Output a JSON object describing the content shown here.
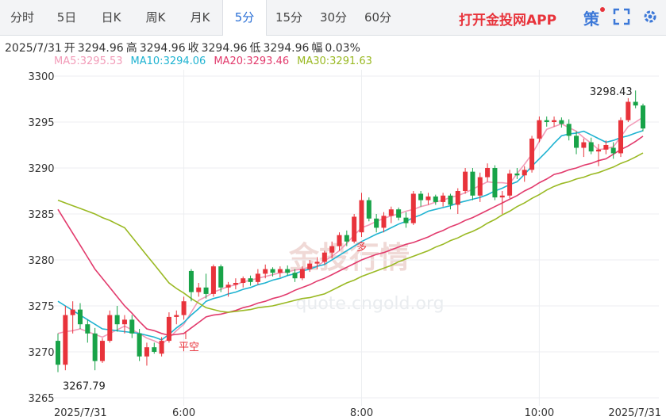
{
  "header": {
    "tabs": [
      "分时",
      "5日",
      "日K",
      "周K",
      "月K",
      "5分",
      "15分",
      "30分",
      "60分"
    ],
    "active": 5,
    "app": "打开金投网APP",
    "strategy": "策"
  },
  "info": {
    "date": "2025/7/31",
    "items": [
      {
        "label": "开",
        "value": "3294.96"
      },
      {
        "label": "高",
        "value": "3294.96"
      },
      {
        "label": "收",
        "value": "3294.96"
      },
      {
        "label": "低",
        "value": "3294.96"
      },
      {
        "label": "幅",
        "value": "0.03%"
      }
    ]
  },
  "chart_data": {
    "type": "candlestick",
    "categories": [
      "2025/7/31",
      null,
      null,
      null,
      null,
      null,
      null,
      null,
      null,
      null,
      null,
      null,
      null,
      null,
      null,
      null,
      null,
      "6:00",
      null,
      null,
      null,
      null,
      null,
      null,
      null,
      null,
      null,
      null,
      null,
      null,
      null,
      null,
      null,
      null,
      null,
      null,
      null,
      null,
      null,
      null,
      null,
      "8:00",
      null,
      null,
      null,
      null,
      null,
      null,
      null,
      null,
      null,
      null,
      null,
      null,
      null,
      null,
      null,
      null,
      null,
      null,
      null,
      null,
      null,
      null,
      null,
      "10:00",
      null,
      null,
      null,
      null,
      null,
      null,
      null,
      null,
      null,
      null,
      null,
      null,
      null,
      "2025/7/31"
    ],
    "open": [
      3271.2,
      3268.6,
      3274,
      3274.6,
      3273,
      3272,
      3269,
      3271.2,
      3274,
      3273,
      3273.5,
      3272,
      3269.5,
      3270.5,
      3269.8,
      3271.2,
      3273.8,
      3274,
      3278.8,
      3276.5,
      3277,
      3276.3,
      3279.3,
      3277,
      3277.3,
      3277.5,
      3278,
      3277.6,
      3278.5,
      3279,
      3278.6,
      3279,
      3278.6,
      3278,
      3279,
      3279.6,
      3279.8,
      3280.8,
      3281.5,
      3282.7,
      3282,
      3283,
      3286.5,
      3284.5,
      3283.5,
      3284.8,
      3285.5,
      3284.6,
      3284,
      3287.2,
      3286.5,
      3286.9,
      3286.3,
      3287,
      3286,
      3287.5,
      3289.6,
      3287,
      3289,
      3290,
      3286.8,
      3287,
      3289.4,
      3289.2,
      3289.8,
      3293.2,
      3295.2,
      3295,
      3295.2,
      3294.8,
      3293.5,
      3292.2,
      3292.8,
      3291.8,
      3292,
      3292.2,
      3291.6,
      3295.2,
      3297.2,
      3296.8
    ],
    "high": [
      3272,
      3275,
      3275.5,
      3275.3,
      3273.5,
      3272.6,
      3271.5,
      3274.5,
      3275,
      3274,
      3274,
      3272.5,
      3271,
      3271,
      3271.6,
      3274.3,
      3274.5,
      3276,
      3279,
      3277.5,
      3278.5,
      3279.5,
      3279.5,
      3277.6,
      3278,
      3278.2,
      3278.3,
      3279,
      3279.5,
      3279.2,
      3279.3,
      3279.4,
      3279,
      3279.3,
      3280,
      3280.3,
      3281,
      3282,
      3283,
      3283.2,
      3285,
      3287.3,
      3286.8,
      3285,
      3285.2,
      3285.8,
      3285.7,
      3285.2,
      3287.5,
      3287.5,
      3287.3,
      3287.1,
      3287.3,
      3287.2,
      3287.8,
      3290,
      3290,
      3289.5,
      3290.5,
      3290.3,
      3287.5,
      3289.8,
      3290,
      3290.2,
      3293.5,
      3295.6,
      3295.6,
      3295.6,
      3295.5,
      3295.3,
      3294,
      3293.2,
      3293.3,
      3292.6,
      3293,
      3292.8,
      3295.5,
      3297.6,
      3298.43,
      3297
    ],
    "low": [
      3267.79,
      3268,
      3272,
      3272.5,
      3271,
      3268,
      3268.8,
      3271,
      3272.2,
      3272,
      3271.5,
      3269,
      3268.5,
      3269.8,
      3269.5,
      3271,
      3273,
      3273.5,
      3275.5,
      3276,
      3275.8,
      3276,
      3276.5,
      3276,
      3276.8,
      3277,
      3277.2,
      3277.3,
      3278,
      3278.2,
      3278.1,
      3278.3,
      3277.6,
      3277.8,
      3278.7,
      3279,
      3279.5,
      3280.2,
      3281,
      3281.5,
      3281.8,
      3282.5,
      3284.2,
      3283,
      3283,
      3284,
      3284.3,
      3283.5,
      3283.8,
      3285.8,
      3286,
      3286,
      3285.8,
      3285.5,
      3285,
      3287.2,
      3286.5,
      3286.3,
      3288.5,
      3286.5,
      3285,
      3286.7,
      3288.8,
      3288.5,
      3289.5,
      3292.8,
      3294.5,
      3294.5,
      3294.4,
      3293,
      3291.5,
      3291.2,
      3291.5,
      3290.2,
      3291.5,
      3291,
      3291.2,
      3295,
      3296.5,
      3294
    ],
    "close": [
      3268.6,
      3274,
      3274.6,
      3273,
      3272,
      3269,
      3271.2,
      3274,
      3273,
      3273.5,
      3272,
      3269.5,
      3270.5,
      3270,
      3271.2,
      3273.8,
      3274,
      3275.5,
      3276.5,
      3277,
      3276.3,
      3279.3,
      3277,
      3277.3,
      3277.5,
      3278,
      3277.6,
      3278.5,
      3279,
      3278.6,
      3279,
      3278.6,
      3278,
      3279,
      3279.6,
      3279.8,
      3280.8,
      3281.5,
      3282.7,
      3282,
      3284.7,
      3286.5,
      3284.5,
      3283.5,
      3284.8,
      3285.5,
      3284.6,
      3284,
      3287.2,
      3286.5,
      3286.9,
      3286.3,
      3287,
      3286,
      3287.5,
      3289.6,
      3287,
      3289,
      3290,
      3286.8,
      3287,
      3289.4,
      3289.2,
      3289.8,
      3293.2,
      3295.2,
      3295,
      3295.2,
      3294.8,
      3293.5,
      3292.2,
      3292.8,
      3291.8,
      3292,
      3292.5,
      3291.6,
      3295.2,
      3297.2,
      3296.8,
      3294.3
    ],
    "up_color": "#e8333b",
    "down_color": "#18a348",
    "series": [
      {
        "name": "MA5:",
        "color": "#f29bb8",
        "values": [
          3272.0,
          3272.2,
          3272.3,
          3272.5,
          3272.2,
          3271.9,
          3271.6,
          3272.0,
          3272.4,
          3272.8,
          3272.4,
          3272.0,
          3271.5,
          3271.2,
          3270.8,
          3271.5,
          3272.3,
          3273.0,
          3274.3,
          3275.6,
          3276.0,
          3276.5,
          3276.8,
          3277.1,
          3277.3,
          3277.6,
          3277.8,
          3278.0,
          3278.2,
          3278.4,
          3278.6,
          3278.7,
          3278.9,
          3279.0,
          3279.2,
          3279.3,
          3279.9,
          3280.4,
          3281.0,
          3281.8,
          3282.7,
          3283.5,
          3283.8,
          3284.2,
          3284.5,
          3284.8,
          3285.0,
          3285.3,
          3285.5,
          3285.8,
          3286.0,
          3286.3,
          3286.5,
          3286.8,
          3287.0,
          3287.3,
          3287.7,
          3288.1,
          3288.5,
          3288.4,
          3288.4,
          3288.3,
          3289.4,
          3290.4,
          3291.5,
          3292.9,
          3294.2,
          3294.5,
          3294.8,
          3294.4,
          3294.0,
          3293.3,
          3292.7,
          3292.0,
          3292.1,
          3292.3,
          3293.4,
          3294.5,
          3295.0,
          3295.53
        ]
      },
      {
        "name": "MA10:",
        "color": "#1fb3d1",
        "values": [
          3275.5,
          3275.0,
          3274.5,
          3274.0,
          3273.5,
          3273.0,
          3272.5,
          3272.4,
          3272.3,
          3272.2,
          3272.1,
          3272.0,
          3271.8,
          3271.6,
          3271.3,
          3271.9,
          3272.6,
          3273.2,
          3274.0,
          3274.7,
          3275.5,
          3275.8,
          3276.0,
          3276.3,
          3276.5,
          3276.8,
          3277.0,
          3277.3,
          3277.5,
          3277.8,
          3278.0,
          3278.3,
          3278.5,
          3278.8,
          3279.0,
          3279.3,
          3279.5,
          3280.0,
          3280.5,
          3281.0,
          3281.5,
          3282.0,
          3282.4,
          3282.8,
          3283.1,
          3283.5,
          3283.9,
          3284.2,
          3284.6,
          3284.9,
          3285.3,
          3285.5,
          3285.7,
          3285.9,
          3286.2,
          3286.4,
          3286.6,
          3286.8,
          3287.1,
          3287.5,
          3287.8,
          3288.2,
          3288.5,
          3289.3,
          3290.2,
          3291.0,
          3291.8,
          3292.7,
          3293.5,
          3293.7,
          3293.8,
          3294.0,
          3293.6,
          3293.2,
          3292.8,
          3293.0,
          3293.3,
          3293.5,
          3293.8,
          3294.06
        ]
      },
      {
        "name": "MA20:",
        "color": "#e23b6d",
        "values": [
          3285.5,
          3284.2,
          3282.9,
          3281.6,
          3280.3,
          3279.0,
          3278.0,
          3277.0,
          3276.0,
          3275.0,
          3274.2,
          3273.3,
          3272.5,
          3272.3,
          3272.0,
          3271.8,
          3271.9,
          3272.0,
          3272.6,
          3273.2,
          3273.8,
          3274.0,
          3274.1,
          3274.3,
          3274.5,
          3274.8,
          3275.0,
          3275.3,
          3275.5,
          3275.8,
          3276.0,
          3276.3,
          3276.7,
          3277.0,
          3277.3,
          3277.7,
          3278.0,
          3278.4,
          3278.8,
          3279.2,
          3279.6,
          3280.0,
          3280.3,
          3280.6,
          3280.8,
          3281.1,
          3281.4,
          3281.7,
          3281.9,
          3282.2,
          3282.5,
          3282.9,
          3283.2,
          3283.6,
          3283.9,
          3284.3,
          3284.6,
          3285.0,
          3285.4,
          3285.8,
          3286.2,
          3286.6,
          3287.0,
          3287.5,
          3287.9,
          3288.4,
          3288.8,
          3289.3,
          3289.5,
          3289.8,
          3290.0,
          3290.3,
          3290.5,
          3290.8,
          3291.0,
          3291.5,
          3292.0,
          3292.4,
          3292.9,
          3293.46
        ]
      },
      {
        "name": "MA30:",
        "color": "#9ab923",
        "values": [
          3286.5,
          3286.2,
          3285.9,
          3285.6,
          3285.3,
          3285.0,
          3284.6,
          3284.3,
          3283.9,
          3283.5,
          3282.5,
          3281.5,
          3280.5,
          3279.5,
          3278.5,
          3277.5,
          3276.9,
          3276.4,
          3275.8,
          3275.3,
          3274.8,
          3274.6,
          3274.4,
          3274.3,
          3274.4,
          3274.5,
          3274.6,
          3274.8,
          3274.9,
          3275.0,
          3275.2,
          3275.4,
          3275.6,
          3275.8,
          3275.9,
          3276.1,
          3276.3,
          3276.7,
          3277.1,
          3277.5,
          3277.8,
          3278.2,
          3278.5,
          3278.8,
          3279.1,
          3279.4,
          3279.8,
          3280.1,
          3280.4,
          3280.7,
          3281.0,
          3281.4,
          3281.7,
          3282.1,
          3282.4,
          3282.8,
          3283.1,
          3283.5,
          3284.0,
          3284.4,
          3284.9,
          3285.3,
          3285.8,
          3286.2,
          3286.7,
          3287.1,
          3287.6,
          3288.0,
          3288.3,
          3288.5,
          3288.8,
          3289.0,
          3289.3,
          3289.5,
          3289.8,
          3290.1,
          3290.5,
          3290.8,
          3291.2,
          3291.63
        ]
      }
    ],
    "ylim": [
      3265,
      3300
    ],
    "yticks": [
      3265,
      3270,
      3275,
      3280,
      3285,
      3290,
      3295,
      3300
    ],
    "grid": true,
    "annotations": [
      "平空",
      "多"
    ],
    "watermark": [
      "金投行情",
      "quote.cngold.org"
    ]
  }
}
